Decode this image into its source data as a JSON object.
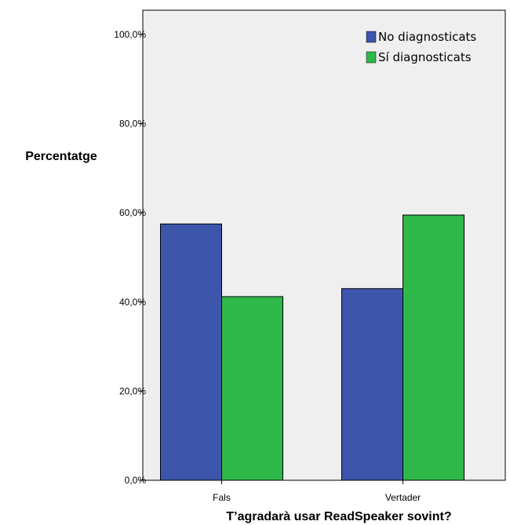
{
  "chart_data": {
    "type": "bar",
    "categories": [
      "Fals",
      "Vertader"
    ],
    "series": [
      {
        "name": "No diagnosticats",
        "values": [
          57.5,
          43.0
        ],
        "color": "#3d55ab"
      },
      {
        "name": "Sí diagnosticats",
        "values": [
          41.2,
          59.5
        ],
        "color": "#2fb84a"
      }
    ],
    "ylabel": "Percentatge",
    "xlabel": "T’agradarà usar ReadSpeaker sovint?",
    "ylim": [
      0,
      100
    ],
    "yticks": [
      "0,0%",
      "20,0%",
      "40,0%",
      "60,0%",
      "80,0%",
      "100,0%"
    ],
    "grid": false,
    "legend": "top-right",
    "plot_background": "#efefef"
  }
}
